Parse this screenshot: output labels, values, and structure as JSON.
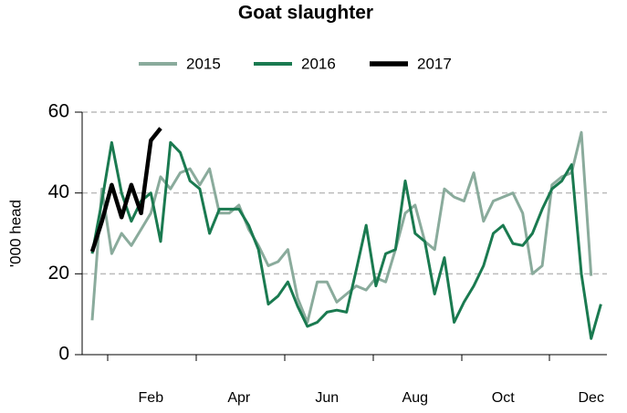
{
  "chart_data": {
    "type": "line",
    "title": "Goat slaughter",
    "y_label": "'000 head",
    "categories": [
      null,
      null,
      null,
      null,
      null,
      null,
      "Feb",
      null,
      null,
      null,
      null,
      null,
      null,
      null,
      null,
      "Apr",
      null,
      null,
      null,
      null,
      null,
      null,
      null,
      null,
      "Jun",
      null,
      null,
      null,
      null,
      null,
      null,
      null,
      null,
      "Aug",
      null,
      null,
      null,
      null,
      null,
      null,
      null,
      null,
      "Oct",
      null,
      null,
      null,
      null,
      null,
      null,
      null,
      null,
      "Dec",
      null
    ],
    "series": [
      {
        "name": "2015",
        "color": "#8aab9c",
        "width": 3,
        "values": [
          8.5,
          41,
          25,
          30,
          27,
          31,
          35,
          44,
          41,
          45,
          46,
          42,
          46,
          35,
          35,
          37,
          31,
          27,
          22,
          23,
          26,
          14,
          8,
          18,
          18,
          13,
          15,
          17,
          16,
          19,
          18,
          26,
          35,
          37,
          28,
          26,
          41,
          39,
          38,
          45,
          33,
          38,
          39,
          40,
          35,
          20,
          22,
          42,
          44,
          45,
          55,
          19.5,
          null
        ]
      },
      {
        "name": "2016",
        "color": "#1a7a50",
        "width": 3,
        "values": [
          25,
          38,
          52.5,
          40,
          33,
          38,
          40,
          28,
          52.5,
          50,
          43,
          41,
          30,
          36,
          36,
          36,
          32,
          26,
          12.5,
          14.5,
          18,
          12,
          7,
          8,
          10.5,
          11,
          10.5,
          21,
          32,
          17,
          25,
          26,
          43,
          30,
          28,
          15,
          24,
          8,
          13,
          17,
          22,
          30,
          32,
          27.5,
          27,
          30,
          36,
          41,
          43,
          47,
          20,
          4,
          12.5
        ]
      },
      {
        "name": "2017",
        "color": "#000000",
        "width": 4.5,
        "values": [
          25.5,
          33,
          42,
          34,
          42,
          35,
          53,
          56,
          null,
          null,
          null,
          null,
          null,
          null,
          null,
          null,
          null,
          null,
          null,
          null,
          null,
          null,
          null,
          null,
          null,
          null,
          null,
          null,
          null,
          null,
          null,
          null,
          null,
          null,
          null,
          null,
          null,
          null,
          null,
          null,
          null,
          null,
          null,
          null,
          null,
          null,
          null,
          null,
          null,
          null,
          null,
          null,
          null
        ]
      }
    ],
    "ylim": [
      0,
      60
    ],
    "yticks": [
      0,
      20,
      40,
      60
    ],
    "grid": true
  }
}
